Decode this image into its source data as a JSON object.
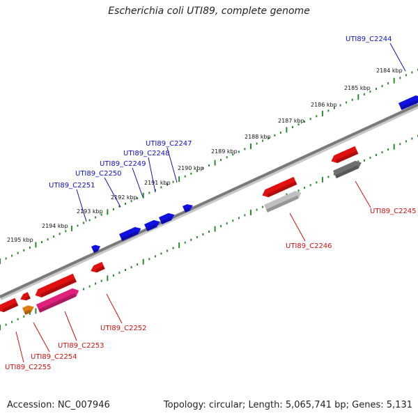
{
  "title": "Escherichia coli UTI89, complete genome",
  "footer": {
    "accession": "Accession: NC_007946",
    "topology": "Topology: circular; Length: 5,065,741 bp; Genes: 5,131"
  },
  "colors": {
    "backbone": "#7a7a7a",
    "tick_green": "#2e8b2e",
    "forward_gene": "#1010e0",
    "reverse_gene": "#e01010",
    "pink_gene": "#e0207a",
    "orange_gene": "#e07a10",
    "gray_gene": "#707070",
    "lightgray_gene": "#c0c0c0",
    "label_forward": "#1010c0",
    "label_reverse": "#d01010"
  },
  "kbp_labels": [
    "2184 kbp",
    "2185 kbp",
    "2186 kbp",
    "2187 kbp",
    "2188 kbp",
    "2189 kbp",
    "2190 kbp",
    "2191 kbp",
    "2192 kbp",
    "2193 kbp",
    "2194 kbp",
    "2195 kbp"
  ],
  "forward_labels": [
    "UTI89_C2244",
    "UTI89_C2247",
    "UTI89_C2248",
    "UTI89_C2249",
    "UTI89_C2250",
    "UTI89_C2251"
  ],
  "reverse_labels": [
    "UTI89_C2245",
    "UTI89_C2246",
    "UTI89_C2252",
    "UTI89_C2253",
    "UTI89_C2254",
    "UTI89_C2255"
  ]
}
